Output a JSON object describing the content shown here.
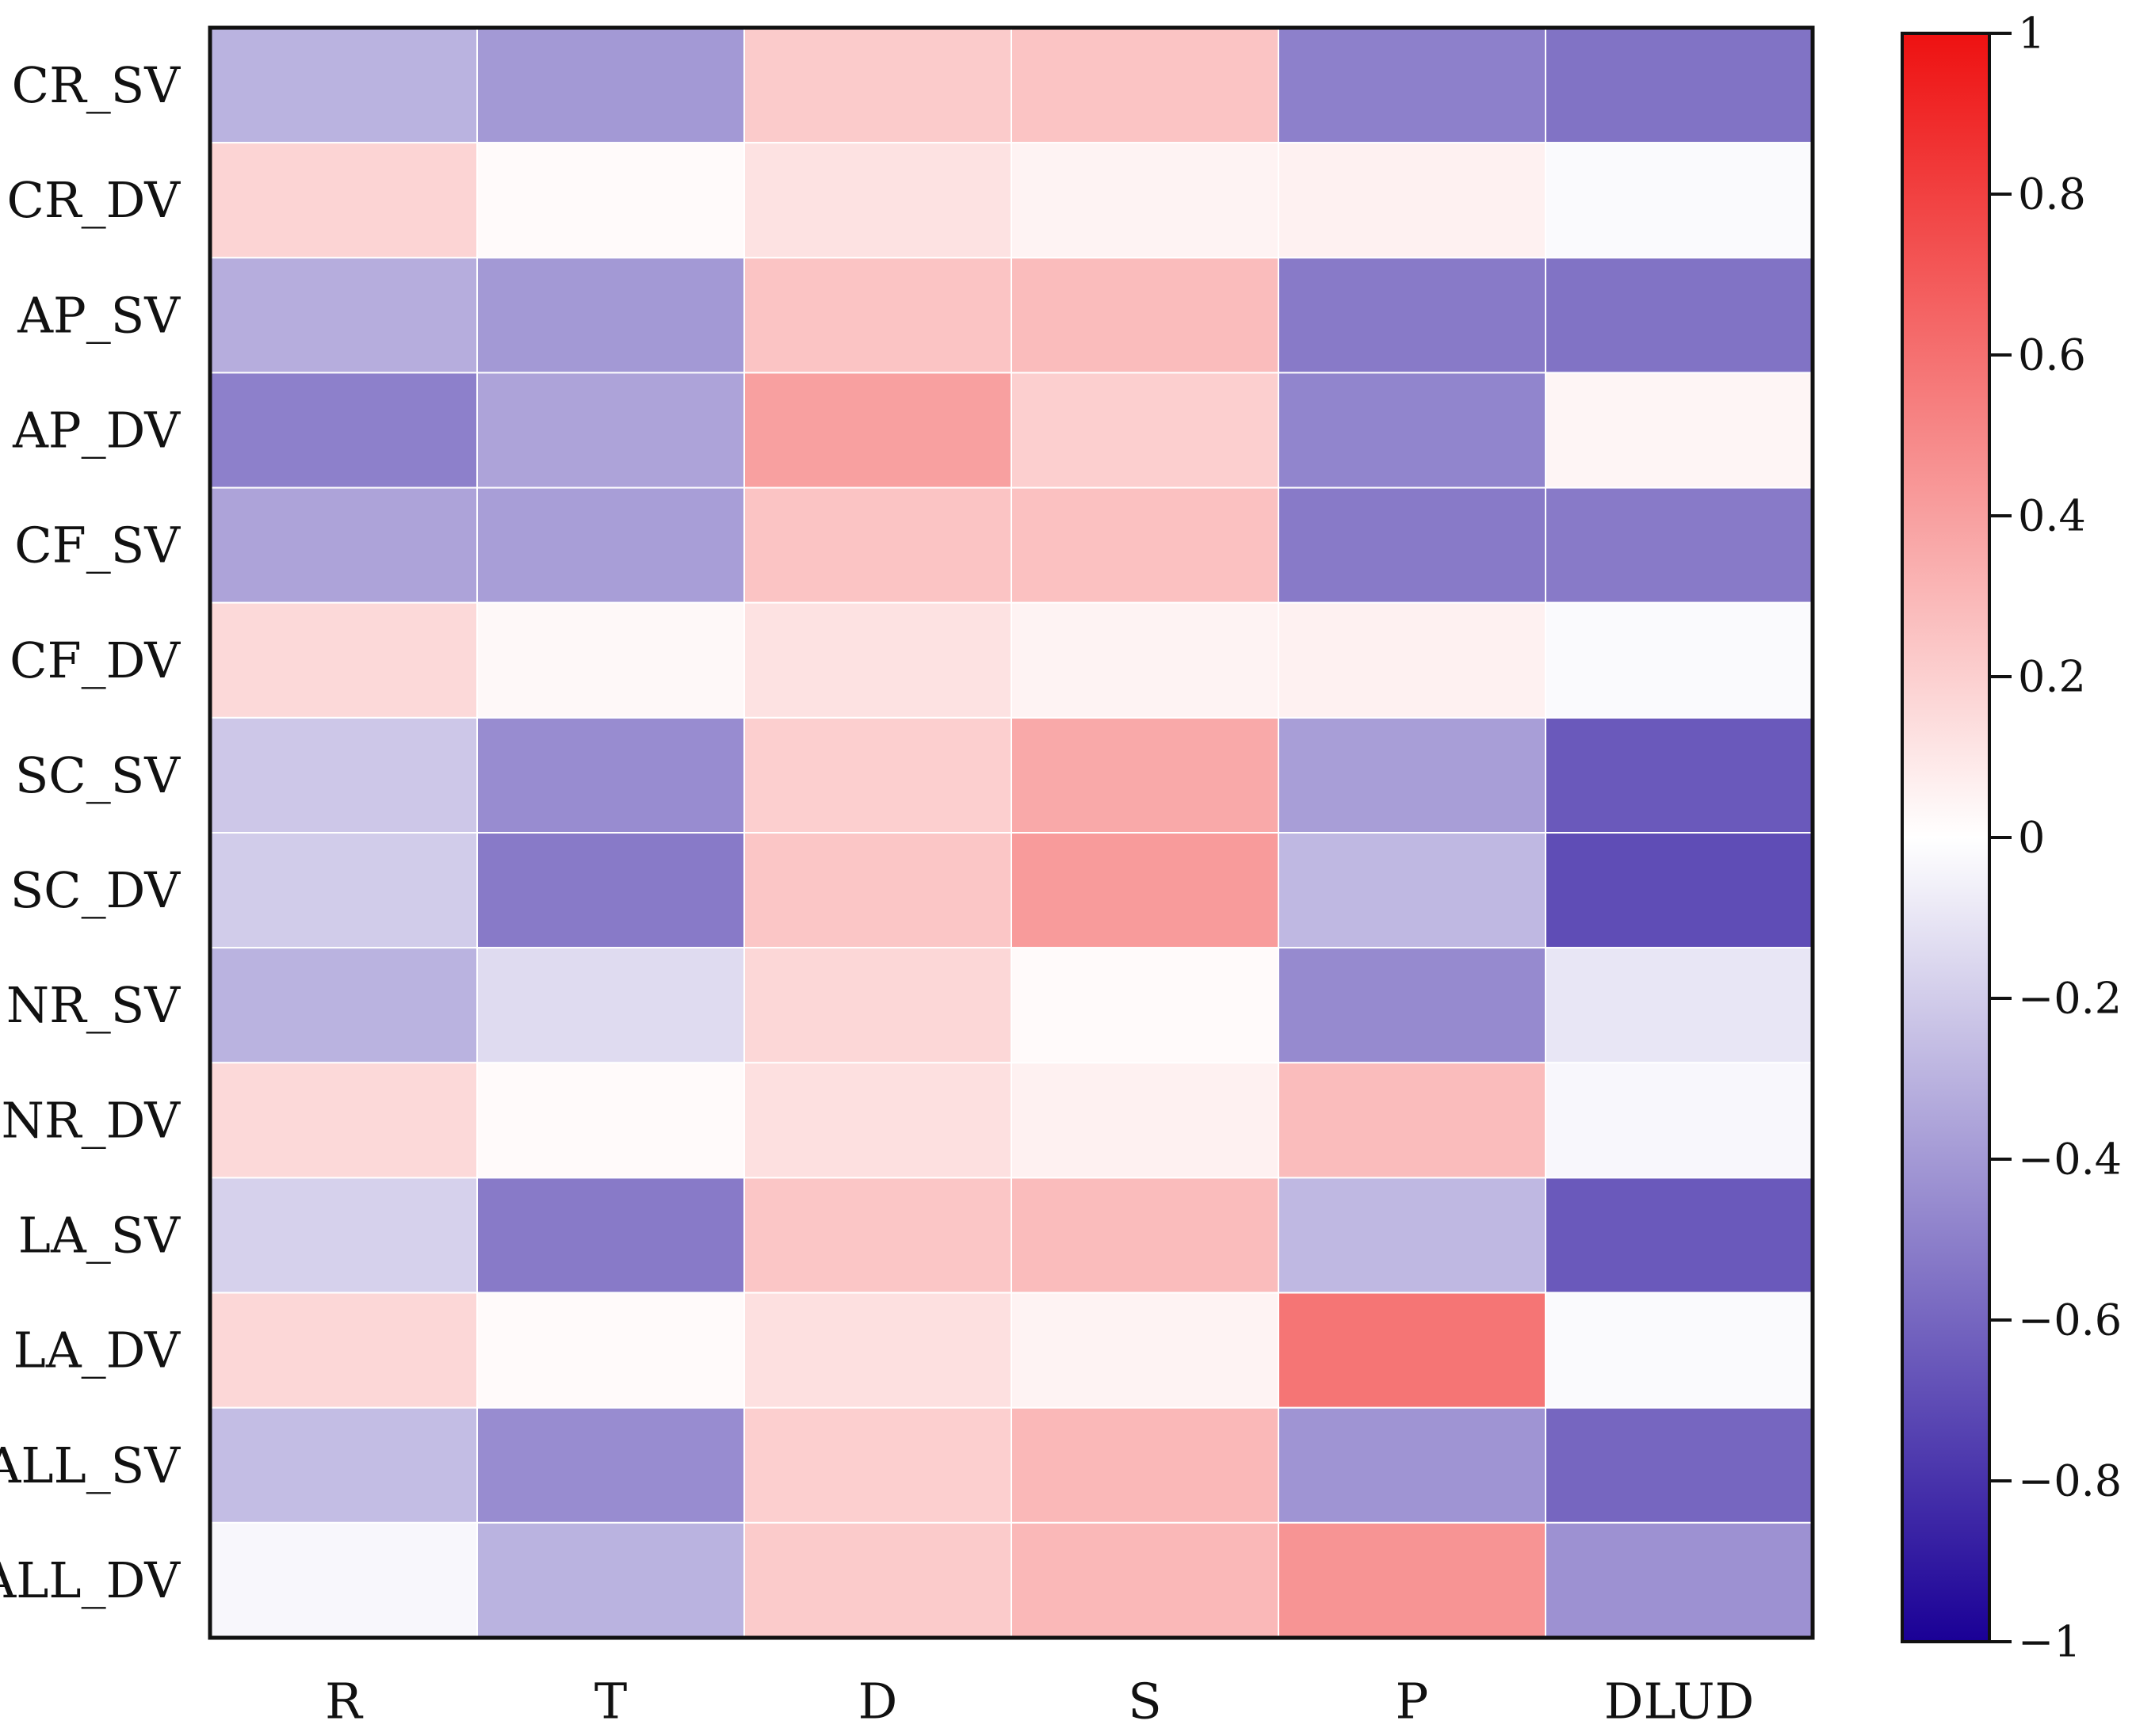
{
  "chart_data": {
    "type": "heatmap",
    "title": "",
    "xlabel": "",
    "ylabel": "",
    "columns": [
      "R",
      "T",
      "D",
      "S",
      "P",
      "DLUD"
    ],
    "rows": [
      "CR_SV",
      "CR_DV",
      "AP_SV",
      "AP_DV",
      "CF_SV",
      "CF_DV",
      "SC_SV",
      "SC_DV",
      "NR_SV",
      "NR_DV",
      "LA_SV",
      "LA_DV",
      "ALL_SV",
      "ALL_DV"
    ],
    "values": [
      [
        -0.3,
        -0.4,
        0.22,
        0.25,
        -0.5,
        -0.55
      ],
      [
        0.18,
        0.02,
        0.12,
        0.05,
        0.06,
        -0.02
      ],
      [
        -0.32,
        -0.4,
        0.25,
        0.28,
        -0.52,
        -0.55
      ],
      [
        -0.5,
        -0.36,
        0.4,
        0.2,
        -0.48,
        0.04
      ],
      [
        -0.36,
        -0.38,
        0.25,
        0.26,
        -0.52,
        -0.52
      ],
      [
        0.16,
        0.03,
        0.12,
        0.05,
        0.06,
        -0.02
      ],
      [
        -0.22,
        -0.45,
        0.2,
        0.36,
        -0.38,
        -0.65
      ],
      [
        -0.2,
        -0.52,
        0.24,
        0.42,
        -0.28,
        -0.7
      ],
      [
        -0.3,
        -0.14,
        0.17,
        0.02,
        -0.46,
        -0.1
      ],
      [
        0.16,
        0.02,
        0.13,
        0.06,
        0.28,
        -0.03
      ],
      [
        -0.18,
        -0.52,
        0.24,
        0.28,
        -0.28,
        -0.65
      ],
      [
        0.17,
        0.02,
        0.13,
        0.05,
        0.58,
        -0.02
      ],
      [
        -0.26,
        -0.45,
        0.2,
        0.3,
        -0.42,
        -0.6
      ],
      [
        -0.03,
        -0.3,
        0.22,
        0.3,
        0.45,
        -0.43
      ]
    ],
    "colorbar": {
      "min": -1,
      "max": 1,
      "ticks": [
        1,
        0.8,
        0.6,
        0.4,
        0.2,
        0,
        -0.2,
        -0.4,
        -0.6,
        -0.8,
        -1
      ],
      "tick_labels": [
        "1",
        "0.8",
        "0.6",
        "0.4",
        "0.2",
        "0",
        "−0.2",
        "−0.4",
        "−0.6",
        "−0.8",
        "−1"
      ],
      "colors": {
        "low": "#1a0096",
        "mid": "#ffffff",
        "high": "#ee1111"
      }
    },
    "grid": false,
    "legend": "right"
  }
}
